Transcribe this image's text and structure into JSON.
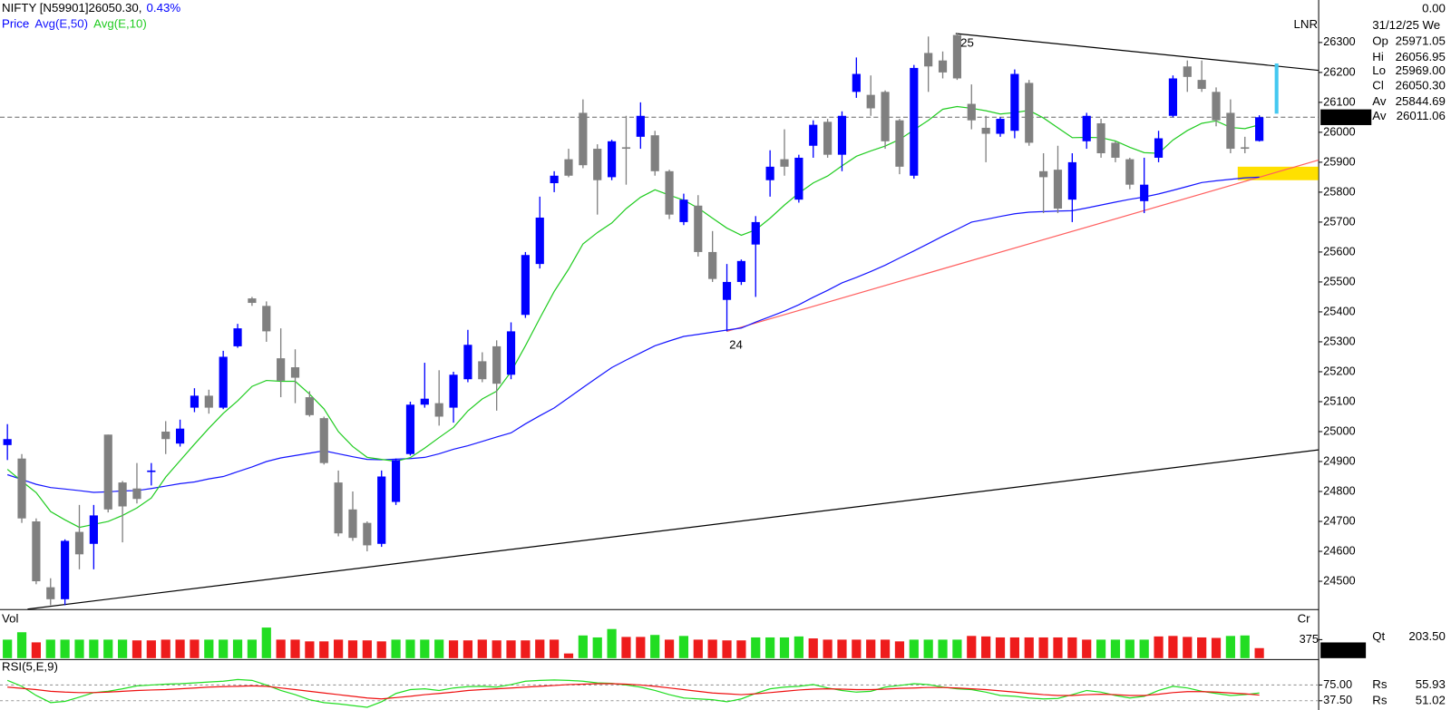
{
  "header": {
    "title": "NIFTY [N59901]26050.30,",
    "change": "0.43%",
    "price_label": "Price",
    "mark": "LNR"
  },
  "info": {
    "change": "0.00",
    "date": "31/12/25 We",
    "rows": [
      {
        "label": "Op",
        "value": "25971.05",
        "color": "#0000cc"
      },
      {
        "label": "Hi",
        "value": "26056.95",
        "color": "#777777"
      },
      {
        "label": "Lo",
        "value": "25969.00",
        "color": "#bbbbbb"
      },
      {
        "label": "Cl",
        "value": "26050.30",
        "color": "#e020e0"
      },
      {
        "label": "Av",
        "value": "25844.69",
        "color": "#0000ff"
      },
      {
        "label": "Av",
        "value": "26011.06",
        "color": "#22cc22"
      }
    ]
  },
  "chart_data": [
    {
      "type": "candlestick",
      "open": [
        24955,
        24910,
        24700,
        24480,
        24440,
        24665,
        24625,
        24990,
        24830,
        24810,
        24865,
        25000,
        24960,
        25080,
        25120,
        25080,
        25285,
        25445,
        25420,
        25245,
        25215,
        25115,
        25045,
        24830,
        24740,
        24695,
        24625,
        24765,
        24925,
        25090,
        25095,
        25080,
        25175,
        25235,
        25285,
        25190,
        25390,
        25560,
        25830,
        25910,
        26065,
        25945,
        25850,
        25950,
        25985,
        25990,
        25870,
        25700,
        25755,
        25600,
        25440,
        25500,
        25625,
        25840,
        25910,
        25775,
        25955,
        26035,
        25925,
        26135,
        26125,
        26135,
        26040,
        25855,
        26265,
        26240,
        26325,
        26095,
        26015,
        25995,
        26005,
        26165,
        25870,
        25875,
        25775,
        25970,
        26030,
        25965,
        25910,
        25770,
        25915,
        26055,
        26220,
        26175,
        26135,
        26065,
        25950,
        25971.05
      ],
      "high": [
        25025,
        24925,
        24710,
        24510,
        24640,
        24755,
        24755,
        24990,
        24835,
        24895,
        24895,
        25035,
        25040,
        25145,
        25140,
        25270,
        25360,
        25450,
        25435,
        25345,
        25275,
        25135,
        25050,
        24870,
        24800,
        24700,
        24870,
        24910,
        25100,
        25230,
        25205,
        25200,
        25340,
        25265,
        25305,
        25365,
        25600,
        25785,
        25870,
        25945,
        26110,
        25960,
        25975,
        26055,
        26100,
        26005,
        25875,
        25795,
        25790,
        25670,
        25560,
        25575,
        25720,
        25940,
        26010,
        25925,
        26040,
        26045,
        26070,
        26250,
        26190,
        26140,
        26045,
        26225,
        26320,
        26270,
        26330,
        26160,
        26055,
        26050,
        26210,
        26175,
        25930,
        25955,
        25930,
        26065,
        26045,
        25970,
        25915,
        25915,
        26005,
        26190,
        26240,
        26240,
        26150,
        26110,
        25985,
        26056.95
      ],
      "low": [
        24905,
        24695,
        24490,
        24420,
        24420,
        24540,
        24540,
        24730,
        24630,
        24760,
        24820,
        24925,
        24950,
        25065,
        25060,
        25075,
        25280,
        25420,
        25300,
        25115,
        25095,
        25050,
        24890,
        24650,
        24635,
        24600,
        24615,
        24755,
        24920,
        25080,
        25020,
        25030,
        25165,
        25165,
        25070,
        25175,
        25380,
        25545,
        25800,
        25850,
        25880,
        25725,
        25840,
        25825,
        25945,
        25855,
        25710,
        25690,
        25585,
        25500,
        25335,
        25490,
        25450,
        25785,
        25855,
        25765,
        25915,
        25915,
        25870,
        26115,
        26055,
        25945,
        25860,
        25845,
        26135,
        26180,
        26175,
        26010,
        25900,
        25985,
        25980,
        25955,
        25730,
        25730,
        25700,
        25945,
        25915,
        25900,
        25810,
        25730,
        25900,
        26050,
        26135,
        26135,
        26020,
        25930,
        25930,
        25969
      ],
      "close": [
        24975,
        24710,
        24500,
        24440,
        24635,
        24590,
        24720,
        24740,
        24750,
        24775,
        24870,
        24975,
        25010,
        25120,
        25080,
        25250,
        25345,
        25430,
        25335,
        25170,
        25180,
        25055,
        24895,
        24660,
        24645,
        24620,
        24850,
        24905,
        25090,
        25110,
        25050,
        25190,
        25290,
        25175,
        25160,
        25335,
        25590,
        25715,
        25855,
        25855,
        25890,
        25840,
        25970,
        25945,
        26055,
        25870,
        25725,
        25775,
        25600,
        25510,
        25500,
        25570,
        25700,
        25885,
        25885,
        25915,
        26025,
        25925,
        26055,
        26195,
        26080,
        25970,
        25885,
        26215,
        26220,
        26200,
        26180,
        26040,
        25995,
        26045,
        26195,
        25965,
        25850,
        25745,
        25900,
        26055,
        25930,
        25915,
        25825,
        25825,
        25980,
        26180,
        26185,
        26145,
        26040,
        25945,
        25945,
        26050.3
      ],
      "up_color": "#0000ff",
      "down_color": "#808080",
      "series": [
        {
          "name": "Avg(E,50)",
          "color": "#1515ff",
          "values": [
            24856,
            24840,
            24824,
            24813,
            24808,
            24803,
            24797,
            24799,
            24802,
            24803,
            24810,
            24818,
            24826,
            24832,
            24842,
            24850,
            24866,
            24882,
            24900,
            24912,
            24920,
            24928,
            24936,
            24926,
            24916,
            24907,
            24906,
            24908,
            24910,
            24914,
            24926,
            24941,
            24953,
            24967,
            24982,
            24996,
            25026,
            25053,
            25079,
            25113,
            25147,
            25181,
            25214,
            25239,
            25263,
            25287,
            25303,
            25318,
            25325,
            25332,
            25339,
            25346,
            25366,
            25384,
            25403,
            25424,
            25449,
            25472,
            25497,
            25515,
            25535,
            25556,
            25580,
            25604,
            25628,
            25653,
            25676,
            25700,
            25709,
            25719,
            25728,
            25733,
            25735,
            25737,
            25738,
            25747,
            25757,
            25767,
            25776,
            25784,
            25794,
            25806,
            25819,
            25832,
            25838,
            25843,
            25848,
            25850
          ]
        },
        {
          "name": "Avg(E,10)",
          "color": "#22cc22",
          "values": [
            24874,
            24834,
            24796,
            24733,
            24705,
            24680,
            24690,
            24700,
            24720,
            24745,
            24778,
            24848,
            24903,
            24958,
            25011,
            25061,
            25103,
            25151,
            25171,
            25168,
            25168,
            25125,
            25076,
            25000,
            24950,
            24914,
            24907,
            24901,
            24913,
            24945,
            24980,
            25014,
            25069,
            25109,
            25135,
            25200,
            25287,
            25379,
            25468,
            25543,
            25627,
            25665,
            25697,
            25745,
            25783,
            25808,
            25790,
            25773,
            25747,
            25713,
            25680,
            25656,
            25674,
            25713,
            25757,
            25797,
            25831,
            25854,
            25888,
            25920,
            25938,
            25954,
            25976,
            26008,
            26040,
            26077,
            26086,
            26080,
            26072,
            26061,
            26066,
            26073,
            26048,
            26015,
            25982,
            25983,
            25982,
            25971,
            25950,
            25932,
            25930,
            25974,
            26006,
            26030,
            26038,
            26016,
            26012,
            26025
          ]
        }
      ],
      "ylim": [
        24407,
        26442
      ],
      "yticks": [
        24500,
        24600,
        24700,
        24800,
        24900,
        25000,
        25100,
        25200,
        25300,
        25400,
        25500,
        25600,
        25700,
        25800,
        25900,
        26000,
        26100,
        26200,
        26300
      ],
      "last_label": "26050.3",
      "trendlines": [
        {
          "x": [
            65.9,
            91.1
          ],
          "y": [
            26330,
            26207
          ],
          "color": "#000000"
        },
        {
          "x": [
            50,
            91.1
          ],
          "y": [
            25335,
            25907
          ],
          "color": "#ff6060"
        },
        {
          "x": [
            1.4,
            91.1
          ],
          "y": [
            24407,
            24939
          ],
          "color": "#000000"
        }
      ],
      "zone": {
        "x": [
          85.5,
          91.1
        ],
        "y": [
          25840,
          25885
        ],
        "color": "#ffe000"
      },
      "marker": {
        "x": 88.2,
        "y": [
          26062,
          26230
        ],
        "color": "#44c8f0"
      },
      "annotations": [
        "25",
        "24"
      ]
    },
    {
      "type": "bar",
      "title": "Vol",
      "axis_label": "Cr",
      "legend": "Qt",
      "last_label": "203.50",
      "values": [
        375,
        525,
        320,
        375,
        375,
        375,
        375,
        375,
        375,
        360,
        360,
        375,
        375,
        375,
        375,
        375,
        375,
        375,
        620,
        375,
        375,
        340,
        340,
        375,
        360,
        360,
        340,
        375,
        375,
        375,
        375,
        360,
        360,
        375,
        360,
        360,
        360,
        375,
        375,
        95,
        460,
        420,
        590,
        430,
        430,
        470,
        375,
        450,
        375,
        375,
        360,
        360,
        420,
        420,
        420,
        440,
        400,
        375,
        375,
        375,
        375,
        375,
        340,
        375,
        375,
        375,
        375,
        450,
        440,
        420,
        420,
        420,
        420,
        420,
        420,
        375,
        375,
        375,
        375,
        375,
        440,
        450,
        430,
        420,
        410,
        450,
        460,
        203.5
      ],
      "colors": [
        "#22dd22",
        "#22dd22",
        "#ee1c1c",
        "#22dd22",
        "#22dd22",
        "#22dd22",
        "#22dd22",
        "#22dd22",
        "#22dd22",
        "#ee1c1c",
        "#ee1c1c",
        "#ee1c1c",
        "#ee1c1c",
        "#ee1c1c",
        "#22dd22",
        "#22dd22",
        "#22dd22",
        "#22dd22",
        "#22dd22",
        "#ee1c1c",
        "#ee1c1c",
        "#ee1c1c",
        "#ee1c1c",
        "#ee1c1c",
        "#ee1c1c",
        "#ee1c1c",
        "#ee1c1c",
        "#22dd22",
        "#22dd22",
        "#22dd22",
        "#22dd22",
        "#ee1c1c",
        "#ee1c1c",
        "#ee1c1c",
        "#ee1c1c",
        "#ee1c1c",
        "#ee1c1c",
        "#ee1c1c",
        "#ee1c1c",
        "#ee1c1c",
        "#22dd22",
        "#22dd22",
        "#22dd22",
        "#ee1c1c",
        "#ee1c1c",
        "#22dd22",
        "#ee1c1c",
        "#22dd22",
        "#ee1c1c",
        "#ee1c1c",
        "#ee1c1c",
        "#ee1c1c",
        "#22dd22",
        "#22dd22",
        "#22dd22",
        "#22dd22",
        "#ee1c1c",
        "#ee1c1c",
        "#ee1c1c",
        "#ee1c1c",
        "#ee1c1c",
        "#ee1c1c",
        "#ee1c1c",
        "#22dd22",
        "#22dd22",
        "#22dd22",
        "#22dd22",
        "#ee1c1c",
        "#ee1c1c",
        "#ee1c1c",
        "#ee1c1c",
        "#ee1c1c",
        "#ee1c1c",
        "#ee1c1c",
        "#ee1c1c",
        "#ee1c1c",
        "#22dd22",
        "#22dd22",
        "#22dd22",
        "#22dd22",
        "#ee1c1c",
        "#ee1c1c",
        "#ee1c1c",
        "#ee1c1c",
        "#ee1c1c",
        "#22dd22",
        "#22dd22",
        "#ee1c1c"
      ],
      "ylim": [
        0,
        956
      ],
      "yticks": [
        375
      ]
    },
    {
      "type": "line",
      "title": "RSI(5,E,9)",
      "series": [
        {
          "name": "Rs",
          "color": "#22dd22",
          "last_label": "55.93",
          "values": [
            86,
            72,
            50,
            33,
            36,
            46,
            57,
            60,
            66,
            73,
            75,
            77,
            78,
            80,
            82,
            84,
            88,
            86,
            75,
            62,
            52,
            40,
            33,
            30,
            26,
            22,
            35,
            55,
            64,
            66,
            62,
            68,
            71,
            72,
            70,
            76,
            84,
            86,
            87,
            86,
            84,
            80,
            79,
            75,
            70,
            62,
            52,
            44,
            42,
            40,
            35,
            42,
            55,
            66,
            70,
            72,
            76,
            68,
            62,
            58,
            60,
            70,
            74,
            78,
            76,
            70,
            66,
            64,
            58,
            50,
            48,
            44,
            42,
            43,
            52,
            62,
            58,
            50,
            44,
            48,
            62,
            72,
            68,
            60,
            55,
            50,
            52,
            55.93
          ]
        },
        {
          "name": "Rs",
          "color": "#ee1111",
          "last_label": "51.02",
          "values": [
            70,
            67,
            64,
            60,
            58,
            57,
            57,
            58,
            60,
            62,
            63,
            64,
            66,
            68,
            70,
            71,
            72,
            73,
            72,
            68,
            64,
            60,
            56,
            52,
            48,
            44,
            42,
            45,
            48,
            52,
            55,
            58,
            62,
            64,
            66,
            68,
            70,
            72,
            74,
            76,
            77,
            78,
            78,
            77,
            75,
            72,
            68,
            64,
            60,
            56,
            54,
            52,
            54,
            57,
            60,
            63,
            65,
            66,
            65,
            64,
            64,
            65,
            67,
            68,
            69,
            69,
            68,
            66,
            64,
            61,
            58,
            55,
            52,
            50,
            50,
            52,
            53,
            52,
            50,
            50,
            53,
            57,
            59,
            59,
            58,
            56,
            54,
            51.02
          ]
        }
      ],
      "ylim": [
        15.4,
        132.4
      ],
      "yticks": [
        {
          "value": 75,
          "label": "75.00"
        },
        {
          "value": 37.5,
          "label": "37.50"
        }
      ],
      "grid": true
    }
  ]
}
